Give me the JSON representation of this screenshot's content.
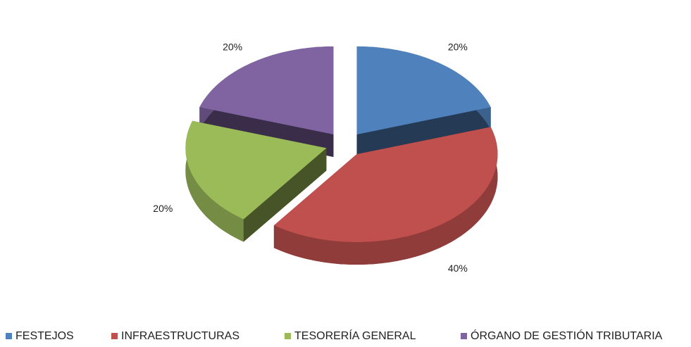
{
  "chart_data": {
    "type": "pie",
    "categories": [
      "FESTEJOS",
      "INFRAESTRUCTURAS",
      "TESORERÍA GENERAL",
      "ÓRGANO DE GESTIÓN TRIBUTARIA"
    ],
    "values": [
      20,
      40,
      20,
      20
    ],
    "value_labels": [
      "20%",
      "40%",
      "20%",
      "20%"
    ],
    "colors": [
      "#4f81bd",
      "#c0504d",
      "#9bbb59",
      "#8064a2"
    ],
    "legend": "bottom"
  }
}
